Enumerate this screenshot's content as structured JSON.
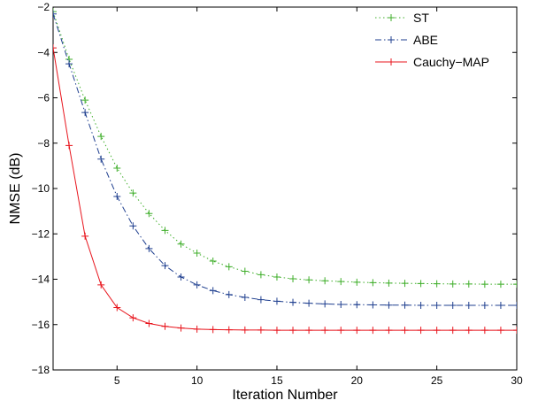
{
  "chart_data": {
    "type": "line",
    "title": "",
    "xlabel": "Iteration Number",
    "ylabel": "NMSE (dB)",
    "xlim": [
      1,
      30
    ],
    "ylim": [
      -18,
      -2
    ],
    "xticks": [
      5,
      10,
      15,
      20,
      25,
      30
    ],
    "yticks": [
      -18,
      -16,
      -14,
      -12,
      -10,
      -8,
      -6,
      -4,
      -2
    ],
    "grid": false,
    "legend_position": "top-right",
    "x": [
      1,
      2,
      3,
      4,
      5,
      6,
      7,
      8,
      9,
      10,
      11,
      12,
      13,
      14,
      15,
      16,
      17,
      18,
      19,
      20,
      21,
      22,
      23,
      24,
      25,
      26,
      27,
      28,
      29,
      30
    ],
    "series": [
      {
        "name": "ST",
        "color": "#3fae2a",
        "line_style": "dotted",
        "marker": "+",
        "values": [
          -2.2,
          -4.3,
          -6.1,
          -7.7,
          -9.1,
          -10.2,
          -11.1,
          -11.85,
          -12.45,
          -12.85,
          -13.2,
          -13.45,
          -13.65,
          -13.8,
          -13.9,
          -13.98,
          -14.03,
          -14.07,
          -14.1,
          -14.13,
          -14.15,
          -14.17,
          -14.18,
          -14.19,
          -14.2,
          -14.21,
          -14.21,
          -14.22,
          -14.22,
          -14.22
        ]
      },
      {
        "name": "ABE",
        "color": "#1f3f8f",
        "line_style": "dashdot",
        "marker": "+",
        "values": [
          -2.3,
          -4.5,
          -6.65,
          -8.7,
          -10.35,
          -11.65,
          -12.65,
          -13.4,
          -13.9,
          -14.25,
          -14.5,
          -14.68,
          -14.8,
          -14.9,
          -14.97,
          -15.02,
          -15.06,
          -15.09,
          -15.11,
          -15.12,
          -15.13,
          -15.14,
          -15.14,
          -15.15,
          -15.15,
          -15.15,
          -15.15,
          -15.15,
          -15.15,
          -15.15
        ]
      },
      {
        "name": "Cauchy−MAP",
        "color": "#e8141c",
        "line_style": "solid",
        "marker": "+",
        "values": [
          -3.8,
          -8.1,
          -12.1,
          -14.25,
          -15.25,
          -15.7,
          -15.95,
          -16.08,
          -16.15,
          -16.2,
          -16.22,
          -16.23,
          -16.24,
          -16.24,
          -16.25,
          -16.25,
          -16.25,
          -16.25,
          -16.25,
          -16.25,
          -16.25,
          -16.25,
          -16.25,
          -16.25,
          -16.25,
          -16.25,
          -16.25,
          -16.25,
          -16.25,
          -16.25
        ]
      }
    ]
  }
}
